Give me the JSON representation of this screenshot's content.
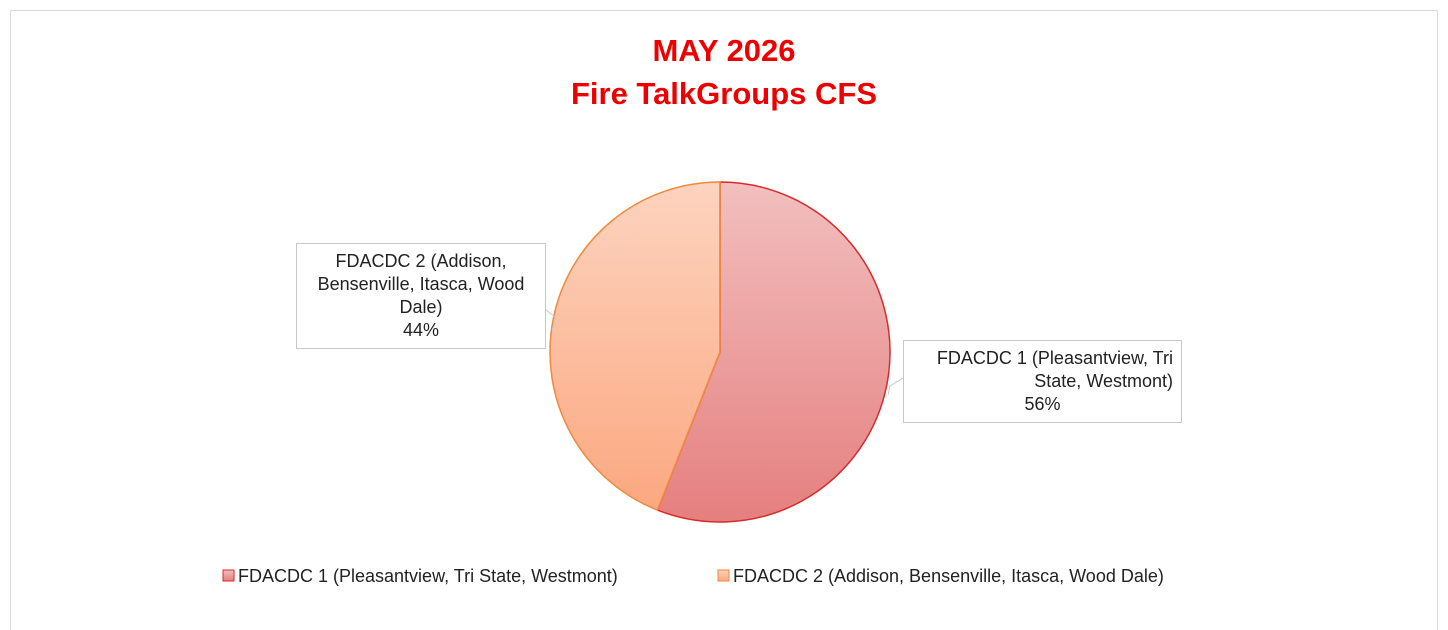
{
  "chart_data": {
    "type": "pie",
    "title": "MAY 2026",
    "subtitle": "Fire TalkGroups CFS",
    "categories": [
      "FDACDC 1 (Pleasantview, Tri State, Westmont)",
      "FDACDC 2 (Addison, Bensenville, Itasca, Wood Dale)"
    ],
    "values": [
      56,
      44
    ],
    "value_labels": [
      "56%",
      "44%"
    ],
    "colors": [
      "#e57f7f",
      "#fba880"
    ],
    "edge_colors": [
      "#d82a2a",
      "#f08a3a"
    ],
    "legend": "bottom"
  }
}
